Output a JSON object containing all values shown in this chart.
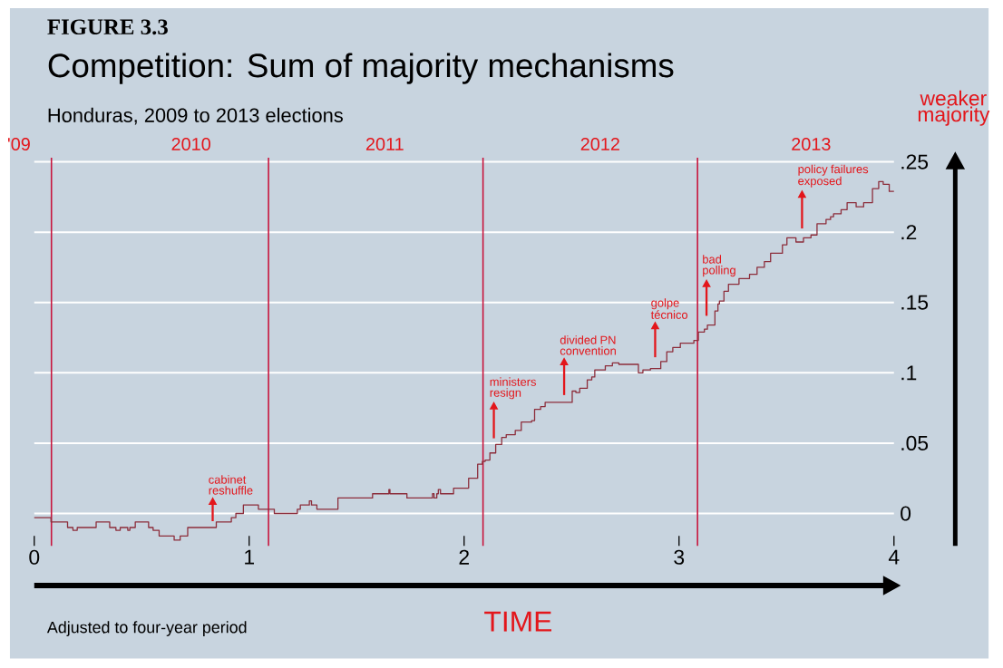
{
  "chart_data": {
    "type": "step",
    "title": "Competition: Sum of majority mechanisms",
    "subtitle": "Honduras, 2009 to 2013 elections",
    "xlabel": "TIME",
    "ylabel": "weaker majority",
    "annotations": [
      "FIGURE 3.3",
      "'09",
      "Adjusted to four-year period",
      "2010",
      "2011",
      "2012",
      "2013",
      "cabinet reshuffle",
      "ministers resign",
      "divided PN convention",
      "golpe técnico",
      "bad polling",
      "policy failures exposed"
    ],
    "x": [
      0,
      0.078,
      0.155,
      0.18,
      0.2,
      0.288,
      0.351,
      0.38,
      0.4,
      0.435,
      0.445,
      0.47,
      0.532,
      0.553,
      0.581,
      0.651,
      0.679,
      0.714,
      0.847,
      0.917,
      0.938,
      0.973,
      1.043,
      1.117,
      1.224,
      1.238,
      1.28,
      1.29,
      1.315,
      1.413,
      1.574,
      1.65,
      1.655,
      1.734,
      1.853,
      1.86,
      1.873,
      1.88,
      1.89,
      1.951,
      2.021,
      2.063,
      2.085,
      2.098,
      2.12,
      2.147,
      2.175,
      2.196,
      2.238,
      2.266,
      2.314,
      2.328,
      2.356,
      2.377,
      2.503,
      2.52,
      2.538,
      2.573,
      2.594,
      2.608,
      2.657,
      2.69,
      2.72,
      2.811,
      2.832,
      2.867,
      2.915,
      2.943,
      2.971,
      3.006,
      3.069,
      3.09,
      3.118,
      3.132,
      3.167,
      3.181,
      3.188,
      3.209,
      3.23,
      3.279,
      3.328,
      3.363,
      3.397,
      3.426,
      3.481,
      3.502,
      3.544,
      3.579,
      3.614,
      3.642,
      3.684,
      3.705,
      3.719,
      3.754,
      3.782,
      3.824,
      3.859,
      3.9,
      3.929,
      3.95,
      3.978,
      4.0
    ],
    "values": [
      -0.003,
      -0.006,
      -0.01,
      -0.012,
      -0.01,
      -0.006,
      -0.01,
      -0.012,
      -0.01,
      -0.012,
      -0.01,
      -0.006,
      -0.01,
      -0.012,
      -0.016,
      -0.019,
      -0.016,
      -0.01,
      -0.006,
      -0.003,
      0.0,
      0.006,
      0.003,
      0.0,
      0.003,
      0.006,
      0.009,
      0.006,
      0.003,
      0.011,
      0.014,
      0.017,
      0.014,
      0.011,
      0.014,
      0.011,
      0.014,
      0.017,
      0.014,
      0.018,
      0.025,
      0.035,
      0.037,
      0.038,
      0.043,
      0.049,
      0.054,
      0.056,
      0.059,
      0.065,
      0.066,
      0.074,
      0.076,
      0.079,
      0.087,
      0.086,
      0.089,
      0.095,
      0.097,
      0.102,
      0.105,
      0.107,
      0.106,
      0.1,
      0.102,
      0.103,
      0.108,
      0.115,
      0.118,
      0.121,
      0.123,
      0.129,
      0.131,
      0.134,
      0.144,
      0.149,
      0.151,
      0.158,
      0.163,
      0.167,
      0.17,
      0.175,
      0.179,
      0.185,
      0.191,
      0.196,
      0.193,
      0.196,
      0.198,
      0.206,
      0.209,
      0.211,
      0.213,
      0.216,
      0.221,
      0.218,
      0.221,
      0.231,
      0.236,
      0.234,
      0.229,
      0.229
    ],
    "color": "#8c2d3b",
    "xlim": [
      0,
      4
    ],
    "ylim": [
      -0.023,
      0.253
    ],
    "xticks": [
      0,
      1,
      2,
      3,
      4
    ],
    "yticks": [
      0,
      {
        "value": 0.05,
        "label": ".05"
      },
      {
        "value": 0.1,
        "label": ".1"
      },
      {
        "value": 0.15,
        "label": ".15"
      },
      {
        "value": 0.2,
        "label": ".2"
      },
      {
        "value": 0.25,
        "label": ".25"
      }
    ],
    "grid": "y",
    "ref_lines": [
      {
        "axis": "x",
        "value": 0.08,
        "color": "#c8143c"
      },
      {
        "axis": "x",
        "value": 1.09,
        "color": "#c8143c"
      },
      {
        "axis": "x",
        "value": 2.088,
        "color": "#c8143c"
      },
      {
        "axis": "x",
        "value": 3.086,
        "color": "#c8143c"
      }
    ]
  }
}
